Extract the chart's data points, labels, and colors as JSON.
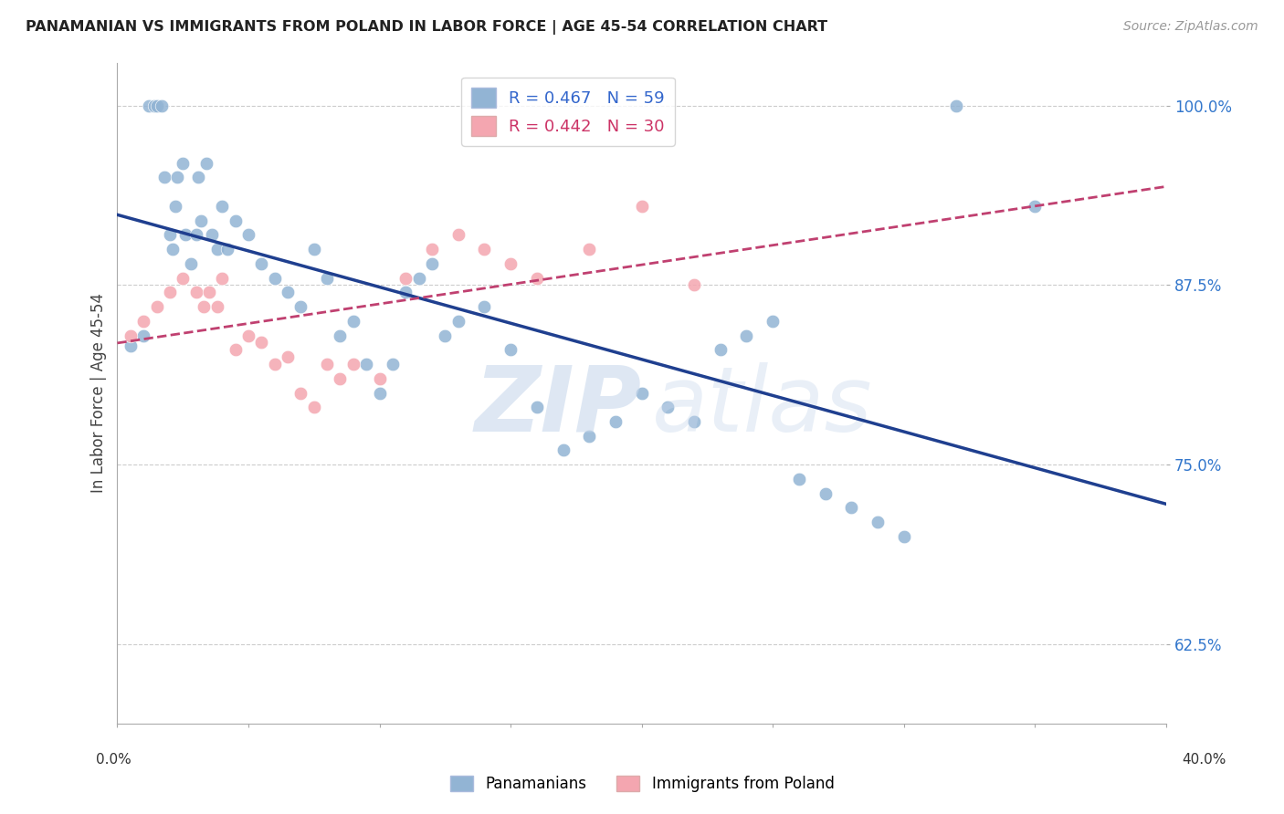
{
  "title": "PANAMANIAN VS IMMIGRANTS FROM POLAND IN LABOR FORCE | AGE 45-54 CORRELATION CHART",
  "source": "Source: ZipAtlas.com",
  "ylabel": "In Labor Force | Age 45-54",
  "legend_blue_r": "0.467",
  "legend_blue_n": "59",
  "legend_pink_r": "0.442",
  "legend_pink_n": "30",
  "blue_color": "#92B4D4",
  "pink_color": "#F4A6B0",
  "blue_line_color": "#1F3F8F",
  "pink_line_color": "#C04070",
  "blue_scatter": [
    [
      0.5,
      83.3
    ],
    [
      1.0,
      84.0
    ],
    [
      1.2,
      100.0
    ],
    [
      1.4,
      100.0
    ],
    [
      1.5,
      100.0
    ],
    [
      1.7,
      100.0
    ],
    [
      1.8,
      95.0
    ],
    [
      2.0,
      91.0
    ],
    [
      2.1,
      90.0
    ],
    [
      2.2,
      93.0
    ],
    [
      2.3,
      95.0
    ],
    [
      2.5,
      96.0
    ],
    [
      2.6,
      91.0
    ],
    [
      2.8,
      89.0
    ],
    [
      3.0,
      91.0
    ],
    [
      3.1,
      95.0
    ],
    [
      3.2,
      92.0
    ],
    [
      3.4,
      96.0
    ],
    [
      3.6,
      91.0
    ],
    [
      3.8,
      90.0
    ],
    [
      4.0,
      93.0
    ],
    [
      4.2,
      90.0
    ],
    [
      4.5,
      92.0
    ],
    [
      5.0,
      91.0
    ],
    [
      5.5,
      89.0
    ],
    [
      6.0,
      88.0
    ],
    [
      6.5,
      87.0
    ],
    [
      7.0,
      86.0
    ],
    [
      7.5,
      90.0
    ],
    [
      8.0,
      88.0
    ],
    [
      8.5,
      84.0
    ],
    [
      9.0,
      85.0
    ],
    [
      9.5,
      82.0
    ],
    [
      10.0,
      80.0
    ],
    [
      10.5,
      82.0
    ],
    [
      11.0,
      87.0
    ],
    [
      11.5,
      88.0
    ],
    [
      12.0,
      89.0
    ],
    [
      12.5,
      84.0
    ],
    [
      13.0,
      85.0
    ],
    [
      14.0,
      86.0
    ],
    [
      15.0,
      83.0
    ],
    [
      16.0,
      79.0
    ],
    [
      17.0,
      76.0
    ],
    [
      18.0,
      77.0
    ],
    [
      19.0,
      78.0
    ],
    [
      20.0,
      80.0
    ],
    [
      21.0,
      79.0
    ],
    [
      22.0,
      78.0
    ],
    [
      23.0,
      83.0
    ],
    [
      24.0,
      84.0
    ],
    [
      25.0,
      85.0
    ],
    [
      26.0,
      74.0
    ],
    [
      27.0,
      73.0
    ],
    [
      28.0,
      72.0
    ],
    [
      29.0,
      71.0
    ],
    [
      30.0,
      70.0
    ],
    [
      32.0,
      100.0
    ],
    [
      35.0,
      93.0
    ]
  ],
  "pink_scatter": [
    [
      0.5,
      84.0
    ],
    [
      1.0,
      85.0
    ],
    [
      1.5,
      86.0
    ],
    [
      2.0,
      87.0
    ],
    [
      2.5,
      88.0
    ],
    [
      3.0,
      87.0
    ],
    [
      3.3,
      86.0
    ],
    [
      3.5,
      87.0
    ],
    [
      3.8,
      86.0
    ],
    [
      4.0,
      88.0
    ],
    [
      4.5,
      83.0
    ],
    [
      5.0,
      84.0
    ],
    [
      5.5,
      83.5
    ],
    [
      6.0,
      82.0
    ],
    [
      6.5,
      82.5
    ],
    [
      7.0,
      80.0
    ],
    [
      7.5,
      79.0
    ],
    [
      8.0,
      82.0
    ],
    [
      8.5,
      81.0
    ],
    [
      9.0,
      82.0
    ],
    [
      10.0,
      81.0
    ],
    [
      11.0,
      88.0
    ],
    [
      12.0,
      90.0
    ],
    [
      13.0,
      91.0
    ],
    [
      14.0,
      90.0
    ],
    [
      15.0,
      89.0
    ],
    [
      16.0,
      88.0
    ],
    [
      18.0,
      90.0
    ],
    [
      20.0,
      93.0
    ],
    [
      22.0,
      87.5
    ]
  ],
  "xlim": [
    0.0,
    40.0
  ],
  "ylim": [
    57.0,
    103.0
  ],
  "yticks": [
    62.5,
    75.0,
    87.5,
    100.0
  ],
  "ytick_labels": [
    "62.5%",
    "75.0%",
    "87.5%",
    "100.0%"
  ],
  "xtick_positions": [
    0.0,
    5.0,
    10.0,
    15.0,
    20.0,
    25.0,
    30.0,
    35.0,
    40.0
  ]
}
